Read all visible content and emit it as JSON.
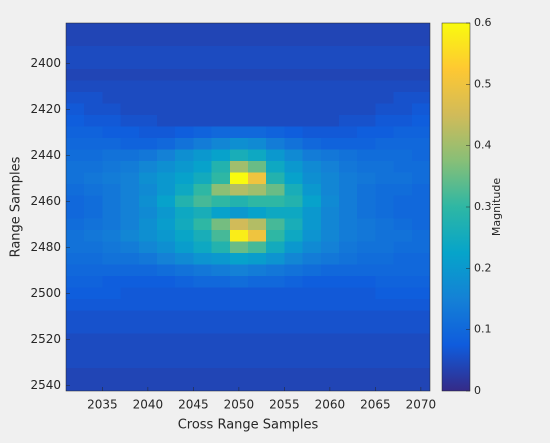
{
  "chart_data": {
    "type": "heatmap",
    "xlabel": "Cross Range Samples",
    "ylabel": "Range Samples",
    "colorbar_label": "Magnitude",
    "x": [
      2032,
      2034,
      2036,
      2038,
      2040,
      2042,
      2044,
      2046,
      2048,
      2050,
      2052,
      2054,
      2056,
      2058,
      2060,
      2062,
      2064,
      2066,
      2068,
      2070
    ],
    "y": [
      2385,
      2390,
      2395,
      2400,
      2405,
      2410,
      2415,
      2420,
      2425,
      2430,
      2435,
      2440,
      2445,
      2450,
      2455,
      2460,
      2465,
      2470,
      2475,
      2480,
      2485,
      2490,
      2495,
      2500,
      2505,
      2510,
      2515,
      2520,
      2525,
      2530,
      2535,
      2540
    ],
    "z": [
      [
        0.04,
        0.04,
        0.04,
        0.04,
        0.04,
        0.04,
        0.04,
        0.04,
        0.04,
        0.04,
        0.04,
        0.04,
        0.04,
        0.04,
        0.04,
        0.04,
        0.04,
        0.04,
        0.04,
        0.04
      ],
      [
        0.04,
        0.04,
        0.04,
        0.04,
        0.04,
        0.04,
        0.04,
        0.04,
        0.04,
        0.04,
        0.04,
        0.04,
        0.04,
        0.04,
        0.04,
        0.04,
        0.04,
        0.04,
        0.04,
        0.04
      ],
      [
        0.05,
        0.05,
        0.05,
        0.05,
        0.05,
        0.05,
        0.05,
        0.05,
        0.05,
        0.05,
        0.05,
        0.05,
        0.05,
        0.05,
        0.05,
        0.05,
        0.05,
        0.05,
        0.05,
        0.05
      ],
      [
        0.05,
        0.05,
        0.05,
        0.05,
        0.05,
        0.05,
        0.05,
        0.05,
        0.05,
        0.05,
        0.05,
        0.05,
        0.05,
        0.05,
        0.05,
        0.05,
        0.05,
        0.05,
        0.05,
        0.05
      ],
      [
        0.04,
        0.04,
        0.04,
        0.04,
        0.04,
        0.04,
        0.04,
        0.04,
        0.04,
        0.04,
        0.04,
        0.04,
        0.04,
        0.04,
        0.04,
        0.04,
        0.04,
        0.04,
        0.04,
        0.04
      ],
      [
        0.05,
        0.05,
        0.05,
        0.05,
        0.05,
        0.05,
        0.05,
        0.05,
        0.05,
        0.05,
        0.05,
        0.05,
        0.05,
        0.05,
        0.05,
        0.05,
        0.05,
        0.05,
        0.05,
        0.05
      ],
      [
        0.06,
        0.06,
        0.05,
        0.05,
        0.05,
        0.05,
        0.05,
        0.05,
        0.05,
        0.05,
        0.05,
        0.05,
        0.05,
        0.05,
        0.05,
        0.05,
        0.05,
        0.05,
        0.06,
        0.06
      ],
      [
        0.07,
        0.06,
        0.06,
        0.05,
        0.05,
        0.05,
        0.05,
        0.05,
        0.05,
        0.05,
        0.05,
        0.05,
        0.05,
        0.05,
        0.05,
        0.05,
        0.05,
        0.06,
        0.06,
        0.07
      ],
      [
        0.08,
        0.07,
        0.07,
        0.06,
        0.06,
        0.05,
        0.05,
        0.05,
        0.05,
        0.05,
        0.05,
        0.05,
        0.05,
        0.05,
        0.05,
        0.06,
        0.06,
        0.07,
        0.07,
        0.08
      ],
      [
        0.09,
        0.09,
        0.08,
        0.08,
        0.07,
        0.07,
        0.08,
        0.09,
        0.1,
        0.1,
        0.1,
        0.09,
        0.08,
        0.07,
        0.07,
        0.07,
        0.08,
        0.08,
        0.09,
        0.09
      ],
      [
        0.1,
        0.1,
        0.1,
        0.09,
        0.09,
        0.1,
        0.12,
        0.14,
        0.16,
        0.18,
        0.17,
        0.14,
        0.12,
        0.1,
        0.09,
        0.09,
        0.09,
        0.1,
        0.1,
        0.1
      ],
      [
        0.11,
        0.11,
        0.12,
        0.12,
        0.13,
        0.15,
        0.18,
        0.2,
        0.22,
        0.26,
        0.24,
        0.2,
        0.17,
        0.14,
        0.13,
        0.12,
        0.11,
        0.11,
        0.11,
        0.1
      ],
      [
        0.12,
        0.12,
        0.13,
        0.14,
        0.16,
        0.18,
        0.2,
        0.22,
        0.28,
        0.4,
        0.35,
        0.24,
        0.2,
        0.17,
        0.15,
        0.13,
        0.12,
        0.12,
        0.11,
        0.11
      ],
      [
        0.12,
        0.13,
        0.14,
        0.15,
        0.18,
        0.2,
        0.22,
        0.25,
        0.3,
        0.6,
        0.5,
        0.28,
        0.22,
        0.18,
        0.16,
        0.14,
        0.13,
        0.12,
        0.12,
        0.11
      ],
      [
        0.11,
        0.12,
        0.13,
        0.15,
        0.17,
        0.2,
        0.24,
        0.3,
        0.38,
        0.42,
        0.4,
        0.35,
        0.26,
        0.2,
        0.16,
        0.14,
        0.12,
        0.11,
        0.11,
        0.1
      ],
      [
        0.1,
        0.11,
        0.13,
        0.15,
        0.18,
        0.22,
        0.28,
        0.32,
        0.3,
        0.28,
        0.3,
        0.3,
        0.28,
        0.22,
        0.17,
        0.14,
        0.12,
        0.11,
        0.1,
        0.1
      ],
      [
        0.1,
        0.11,
        0.13,
        0.15,
        0.17,
        0.2,
        0.24,
        0.26,
        0.22,
        0.2,
        0.22,
        0.24,
        0.24,
        0.2,
        0.16,
        0.14,
        0.12,
        0.11,
        0.1,
        0.1
      ],
      [
        0.11,
        0.12,
        0.13,
        0.15,
        0.18,
        0.21,
        0.25,
        0.3,
        0.36,
        0.45,
        0.42,
        0.32,
        0.26,
        0.2,
        0.16,
        0.14,
        0.13,
        0.12,
        0.11,
        0.1
      ],
      [
        0.12,
        0.13,
        0.14,
        0.16,
        0.18,
        0.2,
        0.23,
        0.26,
        0.32,
        0.58,
        0.5,
        0.3,
        0.24,
        0.19,
        0.16,
        0.14,
        0.13,
        0.12,
        0.12,
        0.11
      ],
      [
        0.12,
        0.12,
        0.13,
        0.14,
        0.16,
        0.18,
        0.21,
        0.24,
        0.28,
        0.35,
        0.32,
        0.25,
        0.2,
        0.17,
        0.15,
        0.13,
        0.12,
        0.12,
        0.11,
        0.11
      ],
      [
        0.11,
        0.11,
        0.12,
        0.12,
        0.13,
        0.15,
        0.17,
        0.19,
        0.2,
        0.22,
        0.21,
        0.19,
        0.16,
        0.14,
        0.13,
        0.12,
        0.11,
        0.11,
        0.1,
        0.1
      ],
      [
        0.1,
        0.1,
        0.1,
        0.1,
        0.1,
        0.11,
        0.12,
        0.13,
        0.14,
        0.15,
        0.14,
        0.13,
        0.12,
        0.11,
        0.1,
        0.1,
        0.1,
        0.1,
        0.1,
        0.1
      ],
      [
        0.09,
        0.09,
        0.08,
        0.08,
        0.08,
        0.08,
        0.09,
        0.1,
        0.1,
        0.11,
        0.1,
        0.1,
        0.09,
        0.08,
        0.08,
        0.08,
        0.08,
        0.09,
        0.09,
        0.09
      ],
      [
        0.08,
        0.08,
        0.08,
        0.07,
        0.07,
        0.07,
        0.07,
        0.07,
        0.07,
        0.07,
        0.07,
        0.07,
        0.07,
        0.07,
        0.07,
        0.07,
        0.07,
        0.08,
        0.08,
        0.08
      ],
      [
        0.07,
        0.07,
        0.07,
        0.07,
        0.07,
        0.07,
        0.07,
        0.07,
        0.07,
        0.07,
        0.07,
        0.07,
        0.07,
        0.07,
        0.07,
        0.07,
        0.07,
        0.07,
        0.07,
        0.07
      ],
      [
        0.06,
        0.06,
        0.06,
        0.06,
        0.06,
        0.06,
        0.06,
        0.06,
        0.06,
        0.06,
        0.06,
        0.06,
        0.06,
        0.06,
        0.06,
        0.06,
        0.06,
        0.06,
        0.06,
        0.06
      ],
      [
        0.06,
        0.06,
        0.06,
        0.06,
        0.06,
        0.06,
        0.06,
        0.06,
        0.06,
        0.06,
        0.06,
        0.06,
        0.06,
        0.06,
        0.06,
        0.06,
        0.06,
        0.06,
        0.06,
        0.06
      ],
      [
        0.05,
        0.05,
        0.05,
        0.05,
        0.05,
        0.05,
        0.05,
        0.05,
        0.05,
        0.05,
        0.05,
        0.05,
        0.05,
        0.05,
        0.05,
        0.05,
        0.05,
        0.05,
        0.05,
        0.05
      ],
      [
        0.05,
        0.05,
        0.05,
        0.05,
        0.05,
        0.05,
        0.05,
        0.05,
        0.05,
        0.05,
        0.05,
        0.05,
        0.05,
        0.05,
        0.05,
        0.05,
        0.05,
        0.05,
        0.05,
        0.05
      ],
      [
        0.05,
        0.05,
        0.05,
        0.05,
        0.05,
        0.05,
        0.05,
        0.05,
        0.05,
        0.05,
        0.05,
        0.05,
        0.05,
        0.05,
        0.05,
        0.05,
        0.05,
        0.05,
        0.05,
        0.05
      ],
      [
        0.04,
        0.04,
        0.04,
        0.04,
        0.04,
        0.04,
        0.04,
        0.04,
        0.04,
        0.04,
        0.04,
        0.04,
        0.04,
        0.04,
        0.04,
        0.04,
        0.04,
        0.04,
        0.04,
        0.04
      ],
      [
        0.04,
        0.04,
        0.04,
        0.04,
        0.04,
        0.04,
        0.04,
        0.04,
        0.04,
        0.04,
        0.04,
        0.04,
        0.04,
        0.04,
        0.04,
        0.04,
        0.04,
        0.04,
        0.04,
        0.04
      ]
    ],
    "xlim": [
      2031,
      2071
    ],
    "xticks": [
      2035,
      2040,
      2045,
      2050,
      2055,
      2060,
      2065,
      2070
    ],
    "ylim": [
      2382.5,
      2542.5
    ],
    "yticks": [
      2400,
      2420,
      2440,
      2460,
      2480,
      2500,
      2520,
      2540
    ],
    "y_reversed": true,
    "clim": [
      0,
      0.6
    ],
    "cticks": [
      0,
      0.1,
      0.2,
      0.3,
      0.4,
      0.5,
      0.6
    ],
    "colormap": [
      "#352a87",
      "#0f5cdd",
      "#1481d6",
      "#06a4ca",
      "#2eb7a4",
      "#87bf77",
      "#d1bb59",
      "#fec832",
      "#f9fb0e"
    ]
  }
}
